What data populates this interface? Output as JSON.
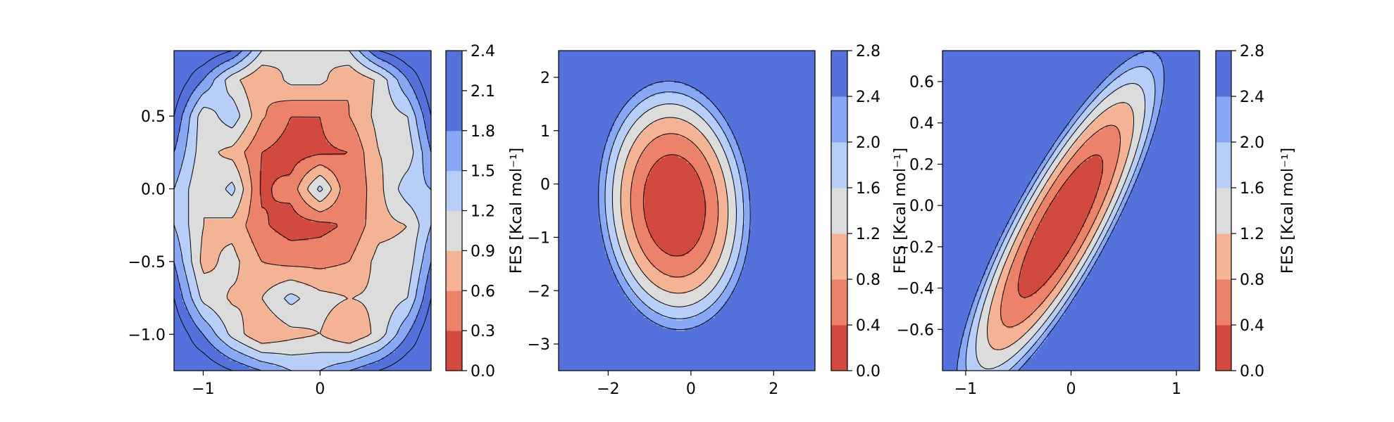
{
  "colors": {
    "level_fills": [
      "#d1493f",
      "#ec826a",
      "#f5b396",
      "#dcdcdc",
      "#b7cff8",
      "#88a8f5",
      "#5571dc"
    ],
    "contour_line": "#000000"
  },
  "chart_data": [
    {
      "type": "contourf",
      "title": "",
      "xlabel": "",
      "ylabel": "",
      "xlim": [
        -1.25,
        0.95
      ],
      "ylim": [
        -1.25,
        0.95
      ],
      "xticks": [
        -1,
        0
      ],
      "xtick_labels": [
        "−1",
        "0"
      ],
      "yticks": [
        -1.0,
        -0.5,
        0.0,
        0.5
      ],
      "ytick_labels": [
        "−1.0",
        "−0.5",
        "0.0",
        "0.5"
      ],
      "colorbar": {
        "label": "FES [Kcal mol⁻¹]",
        "levels": [
          0.0,
          0.3,
          0.6,
          0.9,
          1.2,
          1.5,
          1.8,
          2.1,
          2.4
        ],
        "tick_labels": [
          "0.0",
          "0.3",
          "0.6",
          "0.9",
          "1.2",
          "1.5",
          "1.8",
          "2.1",
          "2.4"
        ]
      },
      "surface": {
        "grid": [
          -1.25,
          -1.0,
          -0.75,
          -0.5,
          -0.25,
          0.0,
          0.25,
          0.5,
          0.75,
          0.95
        ],
        "z": [
          [
            2.4,
            2.4,
            2.1,
            1.8,
            1.5,
            1.5,
            1.8,
            2.1,
            2.4,
            2.4
          ],
          [
            2.4,
            1.8,
            1.1,
            0.6,
            0.8,
            0.9,
            0.6,
            1.0,
            1.8,
            2.4
          ],
          [
            2.1,
            1.1,
            0.85,
            0.9,
            1.3,
            1.0,
            0.9,
            0.95,
            1.2,
            2.1
          ],
          [
            1.8,
            0.8,
            1.0,
            0.6,
            0.5,
            0.5,
            0.6,
            1.0,
            1.0,
            1.8
          ],
          [
            1.5,
            0.9,
            0.8,
            0.35,
            0.15,
            0.2,
            0.35,
            0.8,
            0.9,
            1.5
          ],
          [
            1.5,
            0.9,
            1.3,
            0.25,
            0.4,
            1.3,
            0.3,
            0.8,
            1.4,
            1.5
          ],
          [
            1.8,
            1.0,
            0.8,
            0.3,
            0.15,
            0.25,
            0.3,
            0.9,
            1.0,
            1.8
          ],
          [
            2.1,
            1.0,
            1.4,
            0.65,
            0.3,
            0.3,
            0.6,
            1.0,
            1.2,
            2.1
          ],
          [
            2.4,
            1.8,
            1.0,
            0.6,
            1.0,
            1.0,
            0.6,
            0.95,
            1.8,
            2.4
          ],
          [
            2.4,
            2.4,
            2.1,
            1.2,
            0.9,
            0.9,
            1.2,
            2.1,
            2.4,
            2.4
          ]
        ]
      }
    },
    {
      "type": "contourf",
      "title": "",
      "xlabel": "",
      "ylabel": "",
      "xlim": [
        -3.2,
        3.0
      ],
      "ylim": [
        -3.5,
        2.5
      ],
      "xticks": [
        -2,
        0,
        2
      ],
      "xtick_labels": [
        "−2",
        "0",
        "2"
      ],
      "yticks": [
        -3,
        -2,
        -1,
        0,
        1,
        2
      ],
      "ytick_labels": [
        "−3",
        "−2",
        "−1",
        "0",
        "1",
        "2"
      ],
      "colorbar": {
        "label": "FES [Kcal mol⁻¹]",
        "levels": [
          0.0,
          0.4,
          0.8,
          1.2,
          1.6,
          2.0,
          2.4,
          2.8
        ],
        "tick_labels": [
          "0.0",
          "0.4",
          "0.8",
          "1.2",
          "1.6",
          "2.0",
          "2.4",
          "2.8"
        ]
      },
      "surface": {
        "x0": -0.4,
        "y0": -0.4,
        "sx": 2.6,
        "sy": 3.3,
        "rot": 0.15,
        "scale": 2.2,
        "zmax": 2.8
      }
    },
    {
      "type": "contourf",
      "title": "",
      "xlabel": "",
      "ylabel": "",
      "xlim": [
        -1.22,
        1.22
      ],
      "ylim": [
        -0.8,
        0.75
      ],
      "xticks": [
        -1,
        0,
        1
      ],
      "xtick_labels": [
        "−1",
        "0",
        "1"
      ],
      "yticks": [
        -0.6,
        -0.4,
        -0.2,
        0.0,
        0.2,
        0.4,
        0.6
      ],
      "ytick_labels": [
        "−0.6",
        "−0.4",
        "−0.2",
        "0.0",
        "0.2",
        "0.4",
        "0.6"
      ],
      "colorbar": {
        "label": "FES [Kcal mol⁻¹]",
        "levels": [
          0.0,
          0.4,
          0.8,
          1.2,
          1.6,
          2.0,
          2.4,
          2.8
        ],
        "tick_labels": [
          "0.0",
          "0.4",
          "0.8",
          "1.2",
          "1.6",
          "2.0",
          "2.4",
          "2.8"
        ]
      },
      "surface": {
        "x0": -0.1,
        "y0": -0.1,
        "along": 1.25,
        "across": 0.35,
        "angle_deg": 40,
        "scale": 2.4,
        "zmax": 2.8
      }
    }
  ]
}
